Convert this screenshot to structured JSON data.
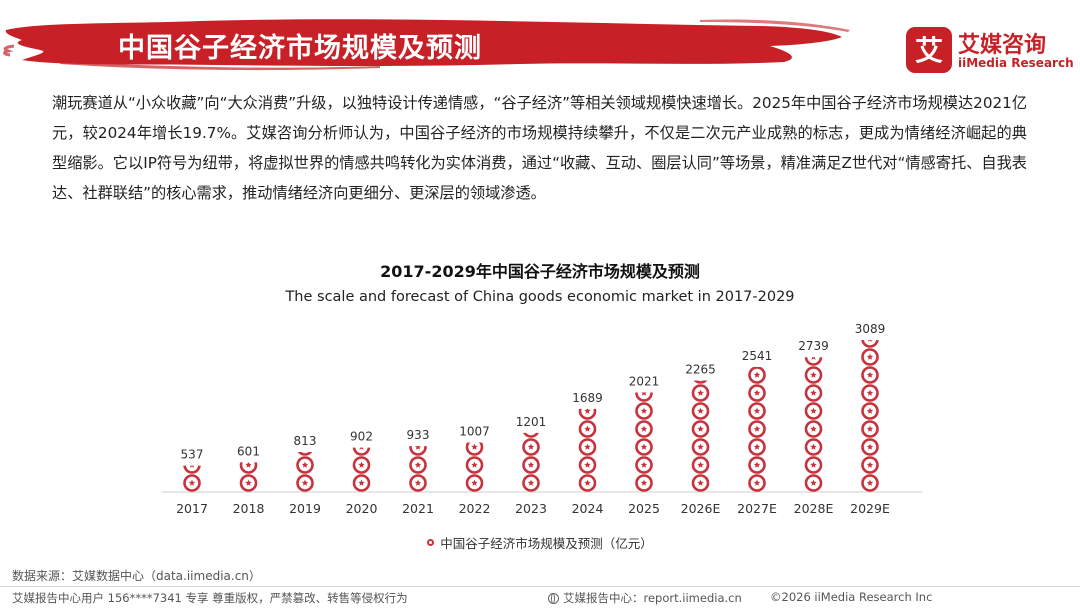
{
  "header": {
    "title": "中国谷子经济市场规模及预测",
    "brand_color": "#c72127"
  },
  "logo": {
    "mark_char": "艾",
    "name_cn": "艾媒咨询",
    "name_en": "iiMedia Research"
  },
  "intro": {
    "text": "潮玩赛道从“小众收藏”向“大众消费”升级，以独特设计传递情感，“谷子经济”等相关领域规模快速增长。2025年中国谷子经济市场规模达2021亿元，较2024年增长19.7%。艾媒咨询分析师认为，中国谷子经济的市场规模持续攀升，不仅是二次元产业成熟的标志，更成为情绪经济崛起的典型缩影。它以IP符号为纽带，将虚拟世界的情感共鸣转化为实体消费，通过“收藏、互动、圈层认同”等场景，精准满足Z世代对“情感寄托、自我表达、社群联结”的核心需求，推动情绪经济向更细分、更深层的领域渗透。"
  },
  "chart_data": {
    "type": "bar",
    "title": "2017-2029年中国谷子经济市场规模及预测",
    "subtitle": "The scale and forecast of China goods economic market in 2017-2029",
    "categories": [
      "2017",
      "2018",
      "2019",
      "2020",
      "2021",
      "2022",
      "2023",
      "2024",
      "2025",
      "2026E",
      "2027E",
      "2028E",
      "2029E"
    ],
    "series": [
      {
        "name": "中国谷子经济市场规模及预测（亿元）",
        "values": [
          537,
          601,
          813,
          902,
          933,
          1007,
          1201,
          1689,
          2021,
          2265,
          2541,
          2739,
          3089
        ],
        "color": "#c8323c"
      }
    ],
    "ylim": [
      0,
      3089
    ],
    "grid": false,
    "legend_position": "bottom",
    "mark_style": "stacked-badge-icons"
  },
  "footer": {
    "source": "数据来源：艾媒数据中心（data.iimedia.cn）",
    "left": "艾媒报告中心用户 156****7341 专享 尊重版权，严禁篡改、转售等侵权行为",
    "center": "艾媒报告中心：report.iimedia.cn",
    "right": "©2026  iiMedia Research  Inc"
  }
}
